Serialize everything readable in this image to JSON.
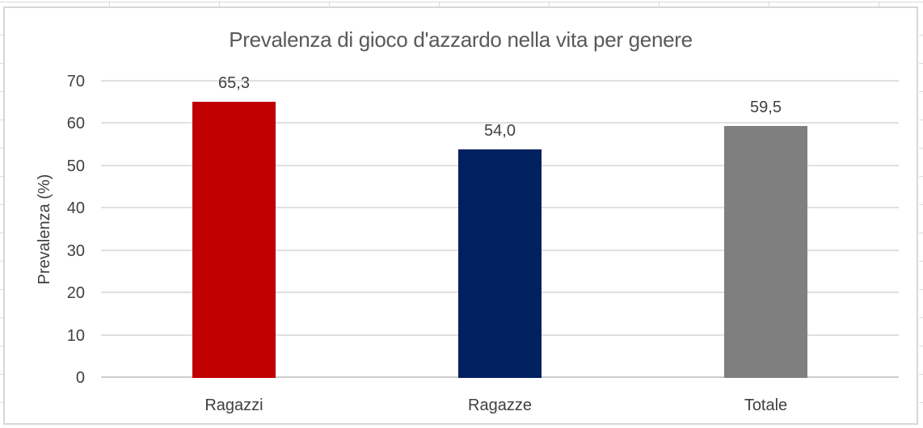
{
  "chart_data": {
    "type": "bar",
    "title": "Prevalenza di gioco d'azzardo nella vita per genere",
    "xlabel": "",
    "ylabel": "Prevalenza (%)",
    "categories": [
      "Ragazzi",
      "Ragazze",
      "Totale"
    ],
    "values": [
      65.3,
      54.0,
      59.5
    ],
    "value_labels": [
      "65,3",
      "54,0",
      "59,5"
    ],
    "bar_colors": [
      "#c00000",
      "#002060",
      "#7f7f7f"
    ],
    "ylim": [
      0,
      70
    ],
    "yticks": [
      0,
      10,
      20,
      30,
      40,
      50,
      60,
      70
    ],
    "grid": true,
    "legend_position": "none",
    "decimal_separator": ","
  },
  "colors": {
    "title_text": "#595959",
    "axis_text": "#404040",
    "gridline": "#e0e0e0",
    "axis_line": "#cdcdcd",
    "chart_border": "#d7d7d7",
    "bar_ragazzi": "#c00000",
    "bar_ragazze": "#002060",
    "bar_totale": "#7f7f7f"
  }
}
